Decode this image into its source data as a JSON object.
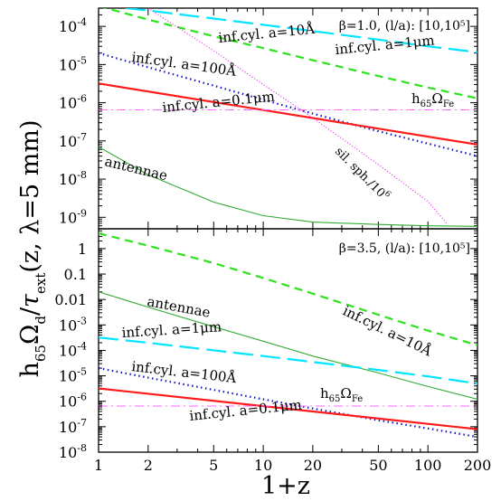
{
  "figure": {
    "ylabel_main": "h",
    "ylabel_sub65": "65",
    "ylabel_omega": "Ω",
    "ylabel_sub_d": "d",
    "ylabel_slash": "/",
    "ylabel_tau": "τ",
    "ylabel_sub_ext": "ext",
    "ylabel_args": "(z, λ=5 mm)",
    "xlabel": "1+z"
  },
  "chart_data": [
    {
      "type": "line",
      "panel": "top",
      "xscale": "log",
      "yscale": "log",
      "xlim": [
        1,
        200
      ],
      "ylim": [
        5e-10,
        0.0003
      ],
      "x_ticks": [
        "1",
        "2",
        "5",
        "10",
        "20",
        "50",
        "100",
        "200"
      ],
      "y_ticks": [
        {
          "base": "10",
          "exp": "-4",
          "value": 0.0001
        },
        {
          "base": "10",
          "exp": "-5",
          "value": 1e-05
        },
        {
          "base": "10",
          "exp": "-6",
          "value": 1e-06
        },
        {
          "base": "10",
          "exp": "-7",
          "value": 1e-07
        },
        {
          "base": "10",
          "exp": "-8",
          "value": 1e-08
        },
        {
          "base": "10",
          "exp": "-9",
          "value": 1e-09
        }
      ],
      "header": "β=1.0, (l/a): [10,10⁵]",
      "series": [
        {
          "name": "inf.cyl. a=1μm",
          "color": "#00e5ff",
          "style": "long-dash",
          "x": [
            1,
            2,
            5,
            10,
            20,
            50,
            100,
            200
          ],
          "y": [
            0.00036,
            0.00026,
            0.00016,
            0.00011,
            7.5e-05,
            4.5e-05,
            3e-05,
            2.1e-05
          ]
        },
        {
          "name": "inf.cyl. a=10Å",
          "color": "#2ee21e",
          "style": "dash",
          "x": [
            1,
            2,
            5,
            10,
            20,
            50,
            100,
            200
          ],
          "y": [
            0.00034,
            0.00015,
            5.5e-05,
            2.7e-05,
            1.3e-05,
            5e-06,
            2.5e-06,
            1.3e-06
          ]
        },
        {
          "name": "inf.cyl. a=100Å",
          "color": "#1414c8",
          "style": "dot",
          "x": [
            1,
            2,
            5,
            10,
            20,
            50,
            100,
            200
          ],
          "y": [
            2e-05,
            8.5e-06,
            2.8e-06,
            1.2e-06,
            5.2e-07,
            1.8e-07,
            8.5e-08,
            4e-08
          ]
        },
        {
          "name": "inf.cyl. a=0.1μm",
          "color": "#ff1a1a",
          "style": "solid",
          "x": [
            1,
            200
          ],
          "y": [
            3.2e-06,
            8e-08
          ]
        },
        {
          "name": "h₆₅Ω_Fe",
          "color": "#ff66ff",
          "style": "dash-dot",
          "x": [
            1,
            200
          ],
          "y": [
            6.5e-07,
            6.5e-07
          ]
        },
        {
          "name": "sil. sph./10⁶",
          "color": "#ee22ee",
          "style": "fine-dot",
          "x": [
            2,
            5,
            10,
            20,
            50,
            100,
            130
          ],
          "y": [
            0.0003,
            2.3e-05,
            3e-06,
            4e-07,
            2.4e-08,
            2.6e-09,
            7e-10
          ]
        },
        {
          "name": "antennae",
          "color": "#33aa33",
          "style": "thin",
          "x": [
            1,
            2,
            5,
            10,
            20,
            50,
            100,
            200
          ],
          "y": [
            7e-08,
            1.3e-08,
            2.5e-09,
            1.1e-09,
            7.5e-10,
            6.5e-10,
            6e-10,
            5.8e-10
          ]
        }
      ],
      "labels": [
        {
          "text": "inf.cyl. a=10Å",
          "series": "inf.cyl. a=10Å"
        },
        {
          "text": "inf.cyl. a=1μm",
          "series": "inf.cyl. a=1μm"
        },
        {
          "text": "inf.cyl. a=100Å",
          "series": "inf.cyl. a=100Å"
        },
        {
          "text": "inf.cyl. a=0.1μm",
          "series": "inf.cyl. a=0.1μm"
        },
        {
          "text": "antennae",
          "series": "antennae"
        },
        {
          "text": "sil. sph./10",
          "sup": "6",
          "series": "sil. sph./10⁶"
        },
        {
          "text": "h",
          "sub": "65",
          "extra": "Ω",
          "sub2": "Fe",
          "series": "h₆₅Ω_Fe"
        }
      ]
    },
    {
      "type": "line",
      "panel": "bottom",
      "xscale": "log",
      "yscale": "log",
      "xlim": [
        1,
        200
      ],
      "ylim": [
        1e-08,
        6
      ],
      "x_ticks": [
        "1",
        "2",
        "5",
        "10",
        "20",
        "50",
        "100",
        "200"
      ],
      "y_ticks": [
        {
          "text": "1",
          "value": 1
        },
        {
          "text": "0.1",
          "value": 0.1
        },
        {
          "text": "0.01",
          "value": 0.01
        },
        {
          "base": "10",
          "exp": "-3",
          "value": 0.001
        },
        {
          "base": "10",
          "exp": "-4",
          "value": 0.0001
        },
        {
          "base": "10",
          "exp": "-5",
          "value": 1e-05
        },
        {
          "base": "10",
          "exp": "-6",
          "value": 1e-06
        },
        {
          "base": "10",
          "exp": "-7",
          "value": 1e-07
        },
        {
          "base": "10",
          "exp": "-8",
          "value": 1e-08
        }
      ],
      "header": "β=3.5, (l/a): [10,10⁵]",
      "series": [
        {
          "name": "inf.cyl. a=10Å",
          "color": "#2ee21e",
          "style": "dash",
          "x": [
            1,
            2,
            5,
            10,
            20,
            50,
            100,
            200
          ],
          "y": [
            4.0,
            1.3,
            0.27,
            0.07,
            0.017,
            0.0025,
            0.0006,
            0.00016
          ]
        },
        {
          "name": "antennae",
          "color": "#33aa33",
          "style": "thin",
          "x": [
            1,
            2,
            5,
            10,
            20,
            50,
            100,
            200
          ],
          "y": [
            0.02,
            0.005,
            0.00085,
            0.00023,
            6e-05,
            1.3e-05,
            3.8e-06,
            1.2e-06
          ]
        },
        {
          "name": "inf.cyl. a=1μm",
          "color": "#00e5ff",
          "style": "long-dash",
          "x": [
            1,
            2,
            5,
            10,
            20,
            50,
            100,
            200
          ],
          "y": [
            0.00032,
            0.0002,
            0.0001,
            6e-05,
            3.5e-05,
            1.7e-05,
            9.5e-06,
            5e-06
          ]
        },
        {
          "name": "inf.cyl. a=100Å",
          "color": "#1414c8",
          "style": "dot",
          "x": [
            1,
            2,
            5,
            10,
            20,
            50,
            100,
            200
          ],
          "y": [
            2e-05,
            8.5e-06,
            2.8e-06,
            1.2e-06,
            5.2e-07,
            1.8e-07,
            8.5e-08,
            4e-08
          ]
        },
        {
          "name": "inf.cyl. a=0.1μm",
          "color": "#ff1a1a",
          "style": "solid",
          "x": [
            1,
            200
          ],
          "y": [
            3.2e-06,
            8e-08
          ]
        },
        {
          "name": "h₆₅Ω_Fe",
          "color": "#ff66ff",
          "style": "dash-dot",
          "x": [
            1,
            200
          ],
          "y": [
            6.5e-07,
            6.5e-07
          ]
        }
      ],
      "labels": [
        {
          "text": "antennae",
          "series": "antennae"
        },
        {
          "text": "inf.cyl. a=10Å",
          "series": "inf.cyl. a=10Å"
        },
        {
          "text": "inf.cyl. a=1μm",
          "series": "inf.cyl. a=1μm"
        },
        {
          "text": "inf.cyl. a=100Å",
          "series": "inf.cyl. a=100Å"
        },
        {
          "text": "inf.cyl. a=0.1μm",
          "series": "inf.cyl. a=0.1μm"
        },
        {
          "text": "h",
          "sub": "65",
          "extra": "Ω",
          "sub2": "Fe",
          "series": "h₆₅Ω_Fe"
        }
      ]
    }
  ]
}
